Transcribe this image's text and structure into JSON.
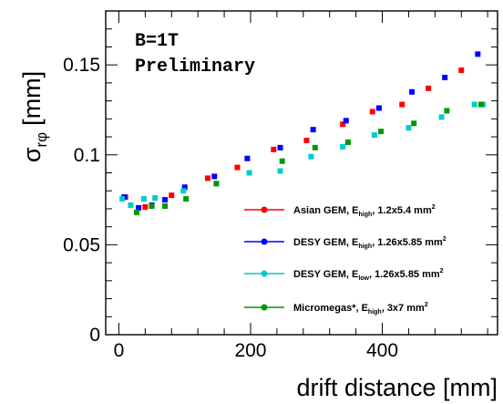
{
  "chart_data": {
    "type": "scatter",
    "title": "",
    "xlabel": "drift distance [mm]",
    "ylabel": {
      "main": "σ",
      "sub": "rφ",
      "unit": "[mm]"
    },
    "xlim": [
      -20,
      575
    ],
    "ylim": [
      0,
      0.18
    ],
    "x_ticks": [
      0,
      200,
      400
    ],
    "x_tick_labels": [
      "0",
      "200",
      "400"
    ],
    "y_ticks": [
      0,
      0.05,
      0.1,
      0.15
    ],
    "y_tick_labels": [
      "0",
      "0.05",
      "0.1",
      "0.15"
    ],
    "grid": false,
    "legend_position": "bottom-right",
    "annotations": [
      "B=1T",
      "Preliminary"
    ],
    "series": [
      {
        "name": "Asian GEM, Ehigh, 1.2x5.4 mm2",
        "legend_parts": [
          "Asian GEM, E",
          "high",
          ", 1.2x5.4 mm",
          "2"
        ],
        "color": "#ff0000",
        "x": [
          10,
          40,
          80,
          135,
          180,
          235,
          285,
          340,
          385,
          430,
          470,
          520
        ],
        "y": [
          0.0765,
          0.071,
          0.0775,
          0.087,
          0.093,
          0.103,
          0.108,
          0.117,
          0.124,
          0.128,
          0.137,
          0.147
        ]
      },
      {
        "name": "DESY GEM, Ehigh, 1.26x5.85 mm2",
        "legend_parts": [
          "DESY GEM, E",
          "high",
          ", 1.26x5.85 mm",
          "2"
        ],
        "color": "#0000ff",
        "x": [
          8,
          30,
          50,
          70,
          100,
          145,
          195,
          245,
          295,
          345,
          395,
          445,
          495,
          545
        ],
        "y": [
          0.0765,
          0.0705,
          0.072,
          0.075,
          0.082,
          0.088,
          0.098,
          0.104,
          0.114,
          0.119,
          0.126,
          0.135,
          0.143,
          0.156
        ]
      },
      {
        "name": "DESY GEM, Elow, 1.26x5.85 mm2",
        "legend_parts": [
          "DESY GEM, E",
          "low",
          ", 1.26x5.85 mm",
          "2"
        ],
        "color": "#00cccc",
        "x": [
          5,
          18,
          38,
          55,
          98,
          148,
          198,
          245,
          292,
          340,
          388,
          440,
          490,
          540,
          553
        ],
        "y": [
          0.0755,
          0.072,
          0.0755,
          0.076,
          0.08,
          0.084,
          0.09,
          0.091,
          0.099,
          0.1045,
          0.111,
          0.115,
          0.121,
          0.128,
          0.128
        ]
      },
      {
        "name": "Micromegas*, Ehigh, 3x7 mm2",
        "legend_parts": [
          "Micromegas*, E",
          "high",
          ",  3x7 mm",
          "2"
        ],
        "color": "#009900",
        "x": [
          27,
          50,
          70,
          102,
          148,
          248,
          298,
          348,
          398,
          448,
          498,
          550
        ],
        "y": [
          0.068,
          0.0715,
          0.0715,
          0.0755,
          0.084,
          0.0965,
          0.104,
          0.107,
          0.113,
          0.1175,
          0.1245,
          0.128
        ]
      }
    ]
  }
}
